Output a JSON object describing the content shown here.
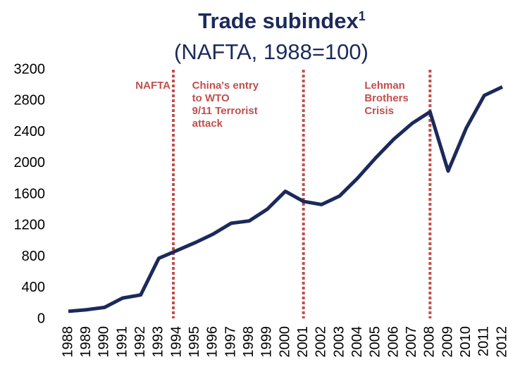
{
  "chart_data": {
    "type": "line",
    "title": "Trade subindex",
    "title_superscript": "1",
    "subtitle": "(NAFTA, 1988=100)",
    "categories": [
      "1988",
      "1989",
      "1990",
      "1991",
      "1992",
      "1993",
      "1994",
      "1995",
      "1996",
      "1997",
      "1998",
      "1999",
      "2000",
      "2001",
      "2002",
      "2003",
      "2004",
      "2005",
      "2006",
      "2007",
      "2008",
      "2009",
      "2010",
      "2011",
      "2012"
    ],
    "series": [
      {
        "name": "Trade subindex",
        "color": "#1b2a5a",
        "values": [
          100,
          120,
          150,
          270,
          310,
          780,
          880,
          980,
          1090,
          1230,
          1260,
          1410,
          1640,
          1510,
          1470,
          1580,
          1810,
          2070,
          2310,
          2510,
          2660,
          1900,
          2450,
          2870,
          2980
        ]
      }
    ],
    "ylim": [
      0,
      3200
    ],
    "yticks": [
      0,
      400,
      800,
      1200,
      1600,
      2000,
      2400,
      2800,
      3200
    ],
    "grid": false,
    "annotations": [
      {
        "category": "1994",
        "lines": [
          "NAFTA"
        ]
      },
      {
        "category": "2001",
        "lines": [
          "China's entry",
          "to WTO",
          "9/11 Terrorist",
          "attack"
        ]
      },
      {
        "category": "2008",
        "lines": [
          "Lehman",
          "Brothers",
          "Crisis"
        ]
      }
    ],
    "annotation_color": "#c0504d"
  }
}
